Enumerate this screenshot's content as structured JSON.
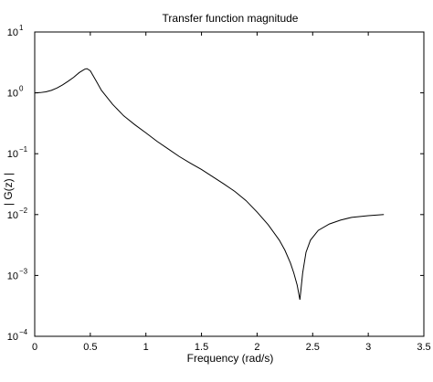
{
  "chart_data": {
    "type": "line",
    "title": "Transfer function magnitude",
    "xlabel": "Frequency (rad/s)",
    "ylabel": "| G(z) |",
    "xscale": "linear",
    "yscale": "log",
    "xlim": [
      0,
      3.5
    ],
    "ylim": [
      0.0001,
      10
    ],
    "xticks": [
      0,
      0.5,
      1,
      1.5,
      2,
      2.5,
      3,
      3.5
    ],
    "xtick_labels": [
      "0",
      "0.5",
      "1",
      "1.5",
      "2",
      "2.5",
      "3",
      "3.5"
    ],
    "yticks": [
      {
        "value": 10,
        "base": "10",
        "exp": "1"
      },
      {
        "value": 1,
        "base": "10",
        "exp": "0"
      },
      {
        "value": 0.1,
        "base": "10",
        "exp": "−1"
      },
      {
        "value": 0.01,
        "base": "10",
        "exp": "−2"
      },
      {
        "value": 0.001,
        "base": "10",
        "exp": "−3"
      },
      {
        "value": 0.0001,
        "base": "10",
        "exp": "−4"
      }
    ],
    "grid": false,
    "line_color": "#000000",
    "series": [
      {
        "x": [
          0,
          0.05,
          0.1,
          0.15,
          0.2,
          0.25,
          0.3,
          0.35,
          0.4,
          0.45,
          0.47,
          0.5,
          0.55,
          0.6,
          0.7,
          0.8,
          0.9,
          1.0,
          1.1,
          1.2,
          1.3,
          1.4,
          1.5,
          1.6,
          1.7,
          1.8,
          1.9,
          2.0,
          2.1,
          2.2,
          2.25,
          2.3,
          2.33,
          2.36,
          2.385,
          2.41,
          2.44,
          2.48,
          2.55,
          2.65,
          2.75,
          2.85,
          3.0,
          3.14
        ],
        "y": [
          1.0,
          1.01,
          1.04,
          1.1,
          1.2,
          1.35,
          1.55,
          1.8,
          2.15,
          2.45,
          2.5,
          2.3,
          1.6,
          1.1,
          0.65,
          0.42,
          0.3,
          0.22,
          0.16,
          0.12,
          0.09,
          0.07,
          0.055,
          0.042,
          0.032,
          0.024,
          0.017,
          0.011,
          0.0068,
          0.0038,
          0.0026,
          0.0016,
          0.0011,
          0.0007,
          0.0004,
          0.0011,
          0.0024,
          0.0038,
          0.0055,
          0.007,
          0.0081,
          0.009,
          0.0096,
          0.01
        ]
      }
    ]
  }
}
